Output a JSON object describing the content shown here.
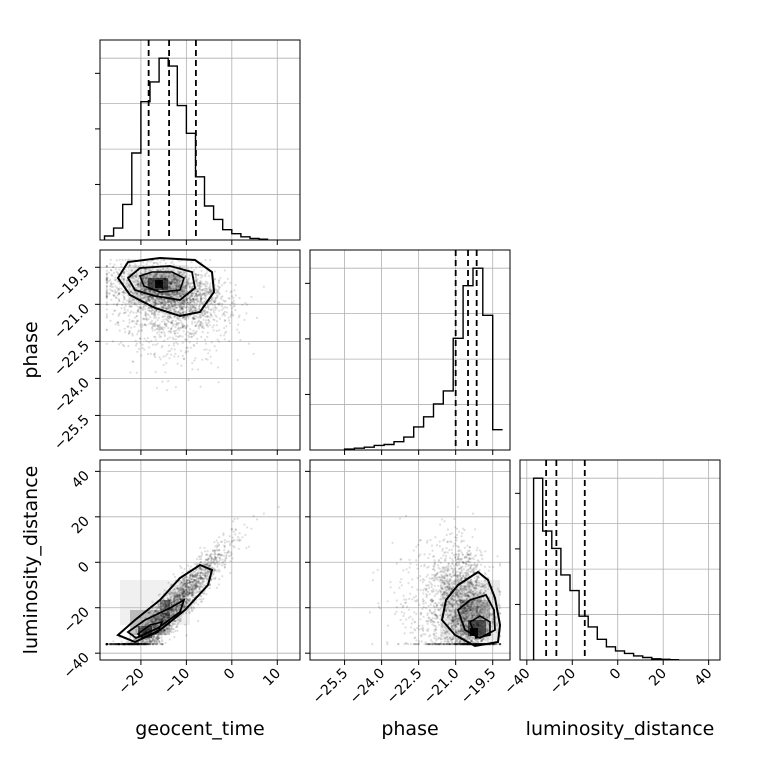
{
  "chart_data": {
    "type": "corner",
    "parameters": [
      "geocent_time",
      "phase",
      "luminosity_distance"
    ],
    "axis_labels": {
      "geocent_time": "geocent_time",
      "phase": "phase",
      "luminosity_distance": "luminosity_distance"
    },
    "ranges": {
      "geocent_time": [
        -29.0,
        15.0
      ],
      "phase": [
        -26.9,
        -18.8
      ],
      "luminosity_distance": [
        -43.0,
        45.0
      ]
    },
    "ticks": {
      "geocent_time": [
        {
          "value": -20,
          "label": "−20"
        },
        {
          "value": -10,
          "label": "−10"
        },
        {
          "value": 0,
          "label": "0"
        },
        {
          "value": 10,
          "label": "10"
        }
      ],
      "phase": [
        {
          "value": -25.5,
          "label": "−25.5"
        },
        {
          "value": -24.0,
          "label": "−24.0"
        },
        {
          "value": -22.5,
          "label": "−22.5"
        },
        {
          "value": -21.0,
          "label": "−21.0"
        },
        {
          "value": -19.5,
          "label": "−19.5"
        }
      ],
      "luminosity_distance": [
        {
          "value": -40,
          "label": "−40"
        },
        {
          "value": -20,
          "label": "−20"
        },
        {
          "value": 0,
          "label": "0"
        },
        {
          "value": 20,
          "label": "20"
        },
        {
          "value": 40,
          "label": "40"
        }
      ]
    },
    "histograms": {
      "geocent_time": {
        "x": [
          -27,
          -25,
          -23,
          -21,
          -19,
          -17,
          -15,
          -13,
          -11,
          -9,
          -7,
          -5,
          -3,
          -1,
          1,
          3,
          5,
          7
        ],
        "counts": [
          0.5,
          1.5,
          4.5,
          11,
          17.5,
          20,
          23,
          22,
          17,
          13.5,
          8,
          4.3,
          2.6,
          1.3,
          0.8,
          0.4,
          0.2,
          0.1
        ],
        "quantiles": [
          -18.3,
          -13.8,
          -7.9
        ]
      },
      "phase": {
        "x": [
          -25.3,
          -24.9,
          -24.5,
          -24.1,
          -23.7,
          -23.3,
          -22.9,
          -22.5,
          -22.1,
          -21.7,
          -21.3,
          -20.9,
          -20.5,
          -20.1,
          -19.7,
          -19.3
        ],
        "counts": [
          0.1,
          0.2,
          0.3,
          0.5,
          0.6,
          0.9,
          1.4,
          2.5,
          3.6,
          5.0,
          6.4,
          12.1,
          17.8,
          19.7,
          14.6,
          2.2
        ],
        "quantiles": [
          -21.0,
          -20.5,
          -20.15
        ]
      },
      "luminosity_distance": {
        "x": [
          -35,
          -31,
          -27,
          -23,
          -19,
          -15,
          -11,
          -7,
          -3,
          1,
          5,
          9,
          13,
          17,
          21,
          25
        ],
        "counts": [
          22,
          15.6,
          13.5,
          10.3,
          8.4,
          5.3,
          4.0,
          2.5,
          1.6,
          1.1,
          0.8,
          0.5,
          0.3,
          0.15,
          0.08,
          0.04
        ],
        "quantiles": [
          -31.5,
          -27.0,
          -14.5
        ]
      }
    },
    "scatter_panels": [
      {
        "x": "geocent_time",
        "y": "phase",
        "correlation": "weak negative"
      },
      {
        "x": "geocent_time",
        "y": "luminosity_distance",
        "correlation": "strong positive"
      },
      {
        "x": "phase",
        "y": "luminosity_distance",
        "correlation": "negative"
      }
    ],
    "quantile_lines": "dashed",
    "grid": true
  }
}
